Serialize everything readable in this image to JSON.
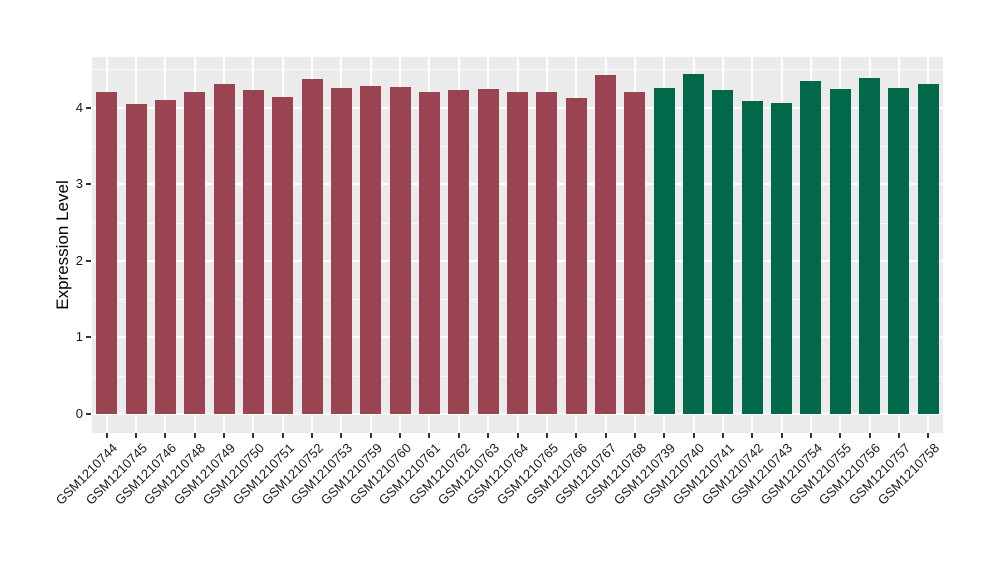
{
  "figure": {
    "background": "#FFFFFF"
  },
  "chart_data": {
    "type": "bar",
    "title": "",
    "xlabel": "",
    "ylabel": "Expression Level",
    "ylim": [
      0,
      4.66
    ],
    "y_ticks": [
      0,
      1,
      2,
      3,
      4
    ],
    "y_minor_ticks": [
      0.5,
      1.5,
      2.5,
      3.5,
      4.5
    ],
    "grid": "on",
    "legend": "none",
    "panel_background": "#EBEBEB",
    "grid_color": "#FFFFFF",
    "tick_color": "#333333",
    "group_colors": {
      "maroon-group": "#9B4451",
      "green-group": "#01694A"
    },
    "bars": [
      {
        "label": "GSM1210744",
        "value": 4.21,
        "group": "maroon-group"
      },
      {
        "label": "GSM1210745",
        "value": 4.05,
        "group": "maroon-group"
      },
      {
        "label": "GSM1210746",
        "value": 4.1,
        "group": "maroon-group"
      },
      {
        "label": "GSM1210748",
        "value": 4.2,
        "group": "maroon-group"
      },
      {
        "label": "GSM1210749",
        "value": 4.31,
        "group": "maroon-group"
      },
      {
        "label": "GSM1210750",
        "value": 4.23,
        "group": "maroon-group"
      },
      {
        "label": "GSM1210751",
        "value": 4.14,
        "group": "maroon-group"
      },
      {
        "label": "GSM1210752",
        "value": 4.37,
        "group": "maroon-group"
      },
      {
        "label": "GSM1210753",
        "value": 4.25,
        "group": "maroon-group"
      },
      {
        "label": "GSM1210759",
        "value": 4.28,
        "group": "maroon-group"
      },
      {
        "label": "GSM1210760",
        "value": 4.27,
        "group": "maroon-group"
      },
      {
        "label": "GSM1210761",
        "value": 4.21,
        "group": "maroon-group"
      },
      {
        "label": "GSM1210762",
        "value": 4.23,
        "group": "maroon-group"
      },
      {
        "label": "GSM1210763",
        "value": 4.24,
        "group": "maroon-group"
      },
      {
        "label": "GSM1210764",
        "value": 4.2,
        "group": "maroon-group"
      },
      {
        "label": "GSM1210765",
        "value": 4.21,
        "group": "maroon-group"
      },
      {
        "label": "GSM1210766",
        "value": 4.13,
        "group": "maroon-group"
      },
      {
        "label": "GSM1210767",
        "value": 4.43,
        "group": "maroon-group"
      },
      {
        "label": "GSM1210768",
        "value": 4.21,
        "group": "maroon-group"
      },
      {
        "label": "GSM1210739",
        "value": 4.26,
        "group": "green-group"
      },
      {
        "label": "GSM1210740",
        "value": 4.44,
        "group": "green-group"
      },
      {
        "label": "GSM1210741",
        "value": 4.23,
        "group": "green-group"
      },
      {
        "label": "GSM1210742",
        "value": 4.08,
        "group": "green-group"
      },
      {
        "label": "GSM1210743",
        "value": 4.06,
        "group": "green-group"
      },
      {
        "label": "GSM1210754",
        "value": 4.35,
        "group": "green-group"
      },
      {
        "label": "GSM1210755",
        "value": 4.24,
        "group": "green-group"
      },
      {
        "label": "GSM1210756",
        "value": 4.38,
        "group": "green-group"
      },
      {
        "label": "GSM1210757",
        "value": 4.25,
        "group": "green-group"
      },
      {
        "label": "GSM1210758",
        "value": 4.31,
        "group": "green-group"
      }
    ]
  }
}
